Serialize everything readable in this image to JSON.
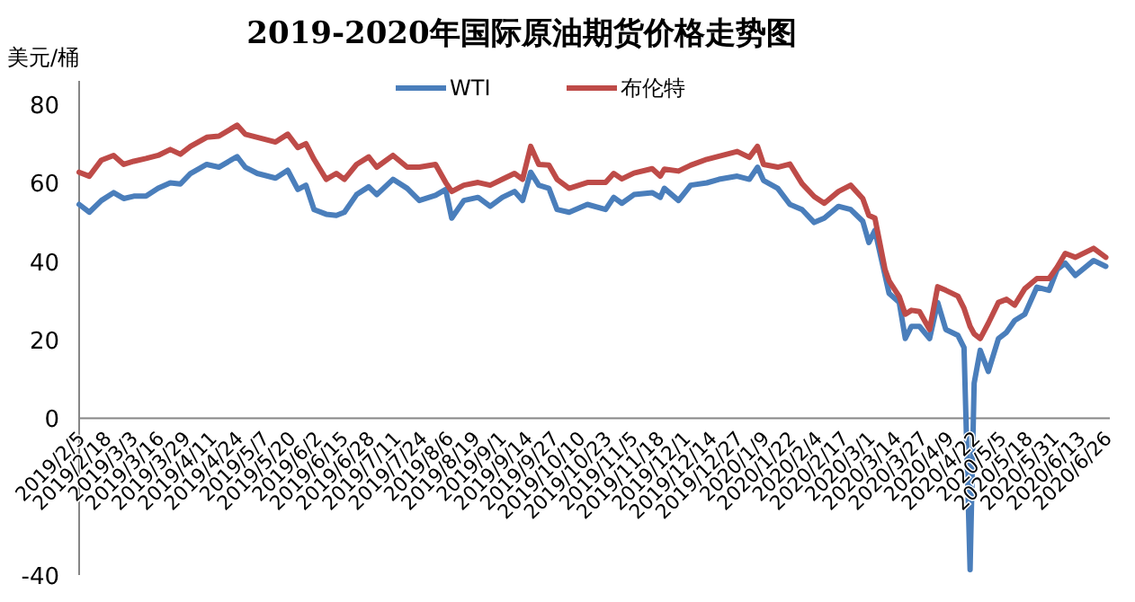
{
  "chart_data": {
    "type": "line",
    "title": "2019-2020年国际原油期货价格走势图",
    "ylabel": "美元/桶",
    "legend": "top",
    "grid": false,
    "marker": "none",
    "line_style": "solid",
    "ylim": [
      -40,
      86
    ],
    "yticks": [
      -40,
      0,
      20,
      40,
      60,
      80
    ],
    "xlim": [
      "2019-02-05",
      "2020-06-28"
    ],
    "xticks": [
      {
        "value": "2019-02-05",
        "label": "2019/2/5"
      },
      {
        "value": "2019-02-18",
        "label": "2019/2/18"
      },
      {
        "value": "2019-03-03",
        "label": "2019/3/3"
      },
      {
        "value": "2019-03-16",
        "label": "2019/3/16"
      },
      {
        "value": "2019-03-29",
        "label": "2019/3/29"
      },
      {
        "value": "2019-04-11",
        "label": "2019/4/11"
      },
      {
        "value": "2019-04-24",
        "label": "2019/4/24"
      },
      {
        "value": "2019-05-07",
        "label": "2019/5/7"
      },
      {
        "value": "2019-05-20",
        "label": "2019/5/20"
      },
      {
        "value": "2019-06-02",
        "label": "2019/6/2"
      },
      {
        "value": "2019-06-15",
        "label": "2019/6/15"
      },
      {
        "value": "2019-06-28",
        "label": "2019/6/28"
      },
      {
        "value": "2019-07-11",
        "label": "2019/7/11"
      },
      {
        "value": "2019-07-24",
        "label": "2019/7/24"
      },
      {
        "value": "2019-08-06",
        "label": "2019/8/6"
      },
      {
        "value": "2019-08-19",
        "label": "2019/8/19"
      },
      {
        "value": "2019-09-01",
        "label": "2019/9/1"
      },
      {
        "value": "2019-09-14",
        "label": "2019/9/14"
      },
      {
        "value": "2019-09-27",
        "label": "2019/9/27"
      },
      {
        "value": "2019-10-10",
        "label": "2019/10/10"
      },
      {
        "value": "2019-10-23",
        "label": "2019/10/23"
      },
      {
        "value": "2019-11-05",
        "label": "2019/11/5"
      },
      {
        "value": "2019-11-18",
        "label": "2019/11/18"
      },
      {
        "value": "2019-12-01",
        "label": "2019/12/1"
      },
      {
        "value": "2019-12-14",
        "label": "2019/12/14"
      },
      {
        "value": "2019-12-27",
        "label": "2019/12/27"
      },
      {
        "value": "2020-01-09",
        "label": "2020/1/9"
      },
      {
        "value": "2020-01-22",
        "label": "2020/1/22"
      },
      {
        "value": "2020-02-04",
        "label": "2020/2/4"
      },
      {
        "value": "2020-02-17",
        "label": "2020/2/17"
      },
      {
        "value": "2020-03-01",
        "label": "2020/3/1"
      },
      {
        "value": "2020-03-14",
        "label": "2020/3/14"
      },
      {
        "value": "2020-03-27",
        "label": "2020/3/27"
      },
      {
        "value": "2020-04-09",
        "label": "2020/4/9"
      },
      {
        "value": "2020-04-22",
        "label": "2020/4/22"
      },
      {
        "value": "2020-05-05",
        "label": "2020/5/5"
      },
      {
        "value": "2020-05-18",
        "label": "2020/5/18"
      },
      {
        "value": "2020-05-31",
        "label": "2020/5/31"
      },
      {
        "value": "2020-06-13",
        "label": "2020/6/13"
      },
      {
        "value": "2020-06-26",
        "label": "2020/6/26"
      }
    ],
    "x": [
      "2019-02-05",
      "2019-02-10",
      "2019-02-16",
      "2019-02-22",
      "2019-02-27",
      "2019-03-04",
      "2019-03-10",
      "2019-03-16",
      "2019-03-22",
      "2019-03-27",
      "2019-04-01",
      "2019-04-09",
      "2019-04-15",
      "2019-04-24",
      "2019-04-28",
      "2019-05-04",
      "2019-05-13",
      "2019-05-19",
      "2019-05-24",
      "2019-05-28",
      "2019-06-01",
      "2019-06-07",
      "2019-06-12",
      "2019-06-16",
      "2019-06-22",
      "2019-06-28",
      "2019-07-02",
      "2019-07-10",
      "2019-07-17",
      "2019-07-23",
      "2019-07-31",
      "2019-08-05",
      "2019-08-08",
      "2019-08-14",
      "2019-08-21",
      "2019-08-27",
      "2019-09-02",
      "2019-09-08",
      "2019-09-12",
      "2019-09-16",
      "2019-09-20",
      "2019-09-25",
      "2019-09-29",
      "2019-10-05",
      "2019-10-14",
      "2019-10-23",
      "2019-10-27",
      "2019-10-31",
      "2019-11-06",
      "2019-11-15",
      "2019-11-19",
      "2019-11-21",
      "2019-11-28",
      "2019-12-04",
      "2019-12-12",
      "2019-12-18",
      "2019-12-27",
      "2020-01-02",
      "2020-01-06",
      "2020-01-09",
      "2020-01-16",
      "2020-01-22",
      "2020-01-28",
      "2020-02-03",
      "2020-02-08",
      "2020-02-15",
      "2020-02-21",
      "2020-02-27",
      "2020-03-01",
      "2020-03-04",
      "2020-03-09",
      "2020-03-11",
      "2020-03-16",
      "2020-03-19",
      "2020-03-22",
      "2020-03-26",
      "2020-03-31",
      "2020-04-04",
      "2020-04-08",
      "2020-04-14",
      "2020-04-17",
      "2020-04-20",
      "2020-04-22",
      "2020-04-25",
      "2020-04-29",
      "2020-05-04",
      "2020-05-08",
      "2020-05-12",
      "2020-05-17",
      "2020-05-23",
      "2020-05-29",
      "2020-06-02",
      "2020-06-06",
      "2020-06-11",
      "2020-06-20",
      "2020-06-26"
    ],
    "series": [
      {
        "name": "WTI",
        "color": "#4a7ebb",
        "values": [
          54.5,
          52.5,
          55.5,
          57.5,
          56,
          56.6,
          56.6,
          58.6,
          60,
          59.7,
          62.4,
          64.7,
          64,
          66.7,
          64,
          62.4,
          61.2,
          63.2,
          58.3,
          59.4,
          53.2,
          52,
          51.7,
          52.5,
          57,
          59,
          57,
          60.9,
          58.6,
          55.5,
          56.8,
          58.3,
          51,
          55.5,
          56.3,
          54,
          56.3,
          57.8,
          55.5,
          62.7,
          59.4,
          58.6,
          53.2,
          52.5,
          54.5,
          53.2,
          56.3,
          54.8,
          57,
          57.5,
          56.3,
          58.6,
          55.5,
          59.4,
          60,
          60.9,
          61.7,
          60.9,
          64,
          60.6,
          58.6,
          54.5,
          53.2,
          49.9,
          51,
          54,
          53.2,
          50.2,
          44.8,
          47.9,
          36.4,
          31.8,
          29.5,
          20.3,
          23.4,
          23.4,
          20.3,
          29.5,
          22.6,
          21.1,
          18,
          -38.6,
          8.9,
          17.3,
          11.9,
          20.3,
          21.9,
          24.9,
          26.5,
          33.4,
          32.6,
          37.9,
          39.5,
          36.4,
          40.2,
          38.7
        ]
      },
      {
        "name": "布伦特",
        "color": "#be4b48",
        "values": [
          62.7,
          61.7,
          65.8,
          67,
          64.7,
          65.5,
          66.2,
          67,
          68.5,
          67.3,
          69.3,
          71.6,
          71.9,
          74.7,
          72.4,
          71.6,
          70.4,
          72.4,
          69,
          70,
          66,
          60.9,
          62.4,
          60.9,
          64.7,
          66.6,
          64,
          67,
          64,
          64,
          64.7,
          60.1,
          57.8,
          59.4,
          60.1,
          59.4,
          60.9,
          62.4,
          60.9,
          69.3,
          64.7,
          64.5,
          60.9,
          58.6,
          60.1,
          60.1,
          62.4,
          61,
          62.5,
          63.6,
          61.7,
          63.5,
          63,
          64.5,
          66,
          66.8,
          68,
          66.5,
          69.3,
          64.7,
          64,
          64.8,
          59.8,
          56.5,
          54.8,
          57.8,
          59.4,
          56,
          51.7,
          51,
          37.9,
          35,
          31,
          26.5,
          27.5,
          27.2,
          22.6,
          33.5,
          32.6,
          31.1,
          28,
          23.4,
          21.5,
          20.3,
          24.2,
          29.5,
          30.3,
          28.8,
          33,
          35.6,
          35.6,
          38.5,
          42,
          41,
          43.3,
          41
        ]
      }
    ]
  }
}
